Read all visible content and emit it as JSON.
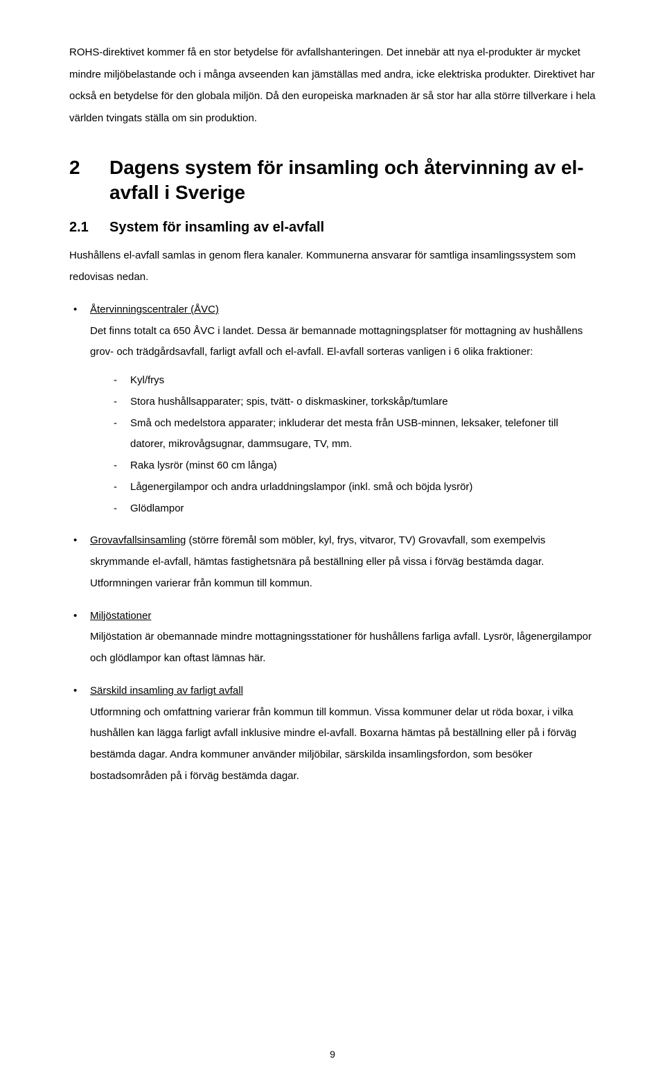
{
  "intro_para": "ROHS-direktivet kommer få en stor betydelse för avfallshanteringen. Det innebär att nya el-produkter är mycket mindre miljöbelastande och i många avseenden kan jämställas med andra, icke elektriska produkter. Direktivet har också en betydelse för den globala miljön. Då den europeiska marknaden är så stor har alla större tillverkare i hela världen tvingats ställa om sin produktion.",
  "h1_num": "2",
  "h1_text": "Dagens system för insamling och återvinning av el-avfall i Sverige",
  "h2_num": "2.1",
  "h2_text": "System för insamling av el-avfall",
  "p_after_h2": "Hushållens el-avfall samlas in genom flera kanaler. Kommunerna ansvarar för samtliga insamlingssystem som redovisas nedan.",
  "bullets": [
    {
      "title": "Återvinningscentraler (ÅVC)",
      "body": "Det finns totalt ca 650 ÅVC i landet. Dessa är bemannade mottagningsplatser för mottagning av hushållens grov- och trädgårdsavfall, farligt avfall och el-avfall. El-avfall sorteras vanligen i 6 olika fraktioner:",
      "sub": [
        "Kyl/frys",
        "Stora hushållsapparater; spis, tvätt- o diskmaskiner, torkskåp/tumlare",
        "Små och medelstora apparater; inkluderar det mesta från USB-minnen, leksaker, telefoner till datorer, mikrovågsugnar, dammsugare, TV, mm.",
        "Raka lysrör (minst 60 cm långa)",
        "Lågenergilampor och andra urladdningslampor (inkl. små och böjda lysrör)",
        "Glödlampor"
      ]
    },
    {
      "title": "Grovavfallsinsamling",
      "title_tail": " (större föremål som möbler, kyl, frys, vitvaror, TV) Grovavfall, som exempelvis skrymmande el-avfall, hämtas fastighetsnära på beställning eller på vissa i förväg bestämda dagar. Utformningen varierar från kommun till kommun.",
      "body": "",
      "sub": []
    },
    {
      "title": "Miljöstationer",
      "body": "Miljöstation är obemannade mindre mottagningsstationer för hushållens farliga avfall. Lysrör, lågenergilampor och glödlampor kan oftast lämnas här.",
      "sub": []
    },
    {
      "title": "Särskild insamling av farligt avfall",
      "body": "Utformning och omfattning varierar från kommun till kommun. Vissa kommuner delar ut röda boxar, i vilka hushållen kan lägga farligt avfall inklusive mindre el-avfall. Boxarna hämtas på beställning eller på i förväg bestämda dagar. Andra kommuner använder miljöbilar, särskilda insamlingsfordon, som besöker bostadsområden på i förväg bestämda dagar.",
      "sub": []
    }
  ],
  "page_number": "9"
}
